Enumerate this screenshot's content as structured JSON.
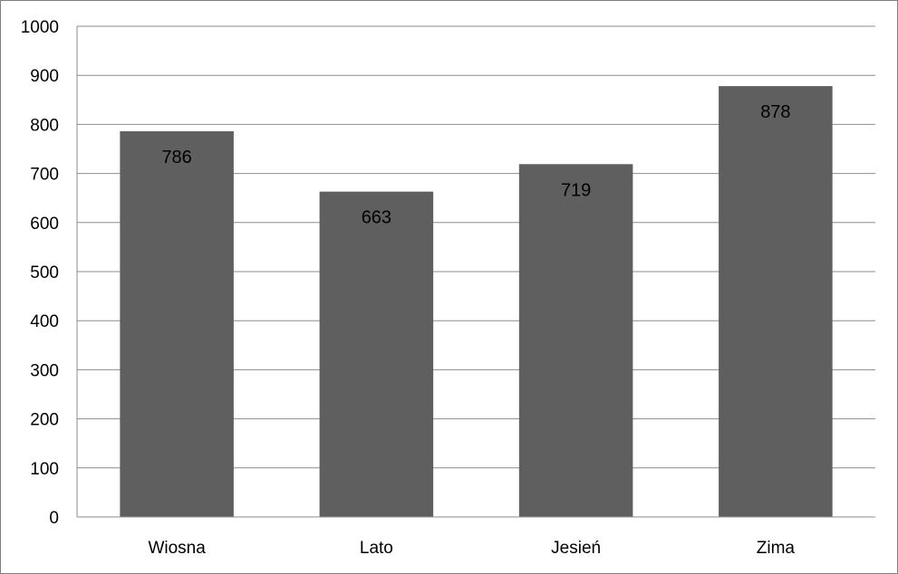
{
  "chart_data": {
    "type": "bar",
    "categories": [
      "Wiosna",
      "Lato",
      "Jesień",
      "Zima"
    ],
    "values": [
      786,
      663,
      719,
      878
    ],
    "data_labels": [
      "786",
      "663",
      "719",
      "878"
    ],
    "ylim": [
      0,
      1000
    ],
    "yticks": [
      0,
      100,
      200,
      300,
      400,
      500,
      600,
      700,
      800,
      900,
      1000
    ],
    "ytick_labels": [
      "0",
      "100",
      "200",
      "300",
      "400",
      "500",
      "600",
      "700",
      "800",
      "900",
      "1000"
    ],
    "grid": true,
    "legend": "none",
    "colors": {
      "bar": "#5f5f5f",
      "grid": "#8c8c8c",
      "axis": "#8c8c8c"
    }
  }
}
